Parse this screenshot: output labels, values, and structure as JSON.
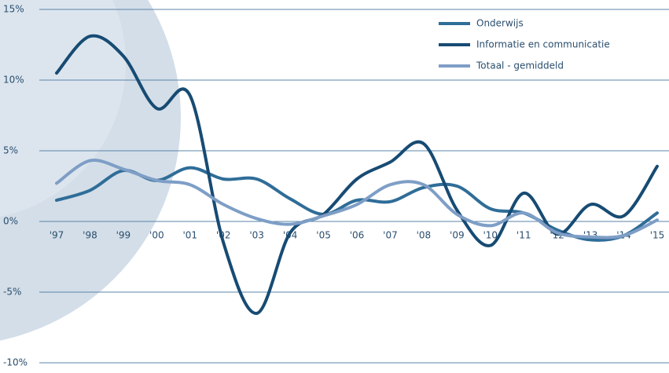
{
  "chart_data": {
    "type": "line",
    "categories": [
      "'97",
      "'98",
      "'99",
      "'00",
      "'01",
      "'02",
      "'03",
      "'04",
      "'05",
      "'06",
      "'07",
      "'08",
      "'09",
      "'10",
      "'11",
      "'12",
      "'13",
      "'14",
      "'15"
    ],
    "series": [
      {
        "name": "Onderwijs",
        "color": "#2f6d98",
        "values": [
          1.5,
          2.2,
          3.6,
          2.9,
          3.8,
          3.0,
          3.0,
          1.6,
          0.5,
          1.5,
          1.4,
          2.4,
          2.5,
          0.9,
          0.6,
          -0.6,
          -1.3,
          -1.0,
          0.6
        ]
      },
      {
        "name": "Informatie en communicatie",
        "color": "#174b73",
        "values": [
          10.5,
          13.1,
          11.7,
          8.0,
          8.9,
          -1.5,
          -6.5,
          -0.8,
          0.5,
          3.0,
          4.2,
          5.5,
          0.8,
          -1.7,
          2.0,
          -0.9,
          1.2,
          0.4,
          3.9
        ]
      },
      {
        "name": "Totaal - gemiddeld",
        "color": "#7e9ec6",
        "values": [
          2.7,
          4.3,
          3.7,
          2.9,
          2.6,
          1.2,
          0.2,
          -0.2,
          0.4,
          1.2,
          2.6,
          2.6,
          0.5,
          -0.3,
          0.6,
          -0.8,
          -1.1,
          -1.0,
          0.1
        ]
      }
    ],
    "ylim": [
      -10,
      15
    ],
    "yticks": [
      {
        "value": -10,
        "label": "-10%"
      },
      {
        "value": -5,
        "label": "-5%"
      },
      {
        "value": 0,
        "label": "0%"
      },
      {
        "value": 5,
        "label": "5%"
      },
      {
        "value": 10,
        "label": "10%"
      },
      {
        "value": 15,
        "label": "15%"
      }
    ],
    "grid": true,
    "legend": "top-right"
  }
}
